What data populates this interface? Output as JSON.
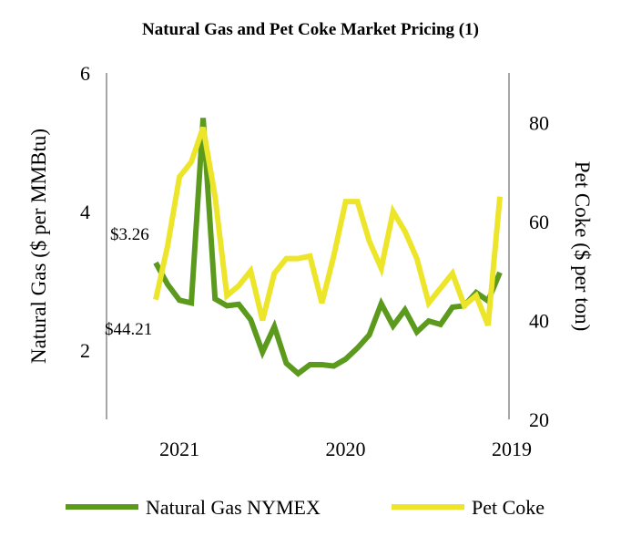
{
  "chart_data": {
    "type": "line",
    "title": "Natural Gas and Pet Coke Market Pricing (1)",
    "ylabel_left": "Natural Gas ($ per MMBtu)",
    "ylabel_right": "Pet Coke ($ per ton)",
    "ylim_left": [
      1,
      6
    ],
    "ylim_right": [
      20,
      90
    ],
    "yticks_left": [
      2,
      4,
      6
    ],
    "yticks_right": [
      20,
      40,
      60,
      80
    ],
    "xtick_labels": [
      "2021",
      "2020",
      "2019"
    ],
    "xtick_positions": [
      2,
      16,
      30
    ],
    "grid": false,
    "legend_position": "bottom",
    "annotations": [
      {
        "text": "$3.26",
        "series": "Natural Gas NYMEX"
      },
      {
        "text": "$44.21",
        "series": "Pet Coke"
      }
    ],
    "series": [
      {
        "name": "Natural Gas NYMEX",
        "axis": "left",
        "color": "#5c9a1e",
        "values": [
          3.26,
          2.95,
          2.72,
          2.68,
          5.35,
          2.74,
          2.64,
          2.66,
          2.44,
          1.97,
          2.34,
          1.81,
          1.66,
          1.79,
          1.79,
          1.77,
          1.87,
          2.03,
          2.22,
          2.67,
          2.35,
          2.58,
          2.26,
          2.42,
          2.37,
          2.62,
          2.64,
          2.83,
          2.71,
          3.12
        ]
      },
      {
        "name": "Pet Coke",
        "axis": "right",
        "color": "#ede52a",
        "values": [
          44.21,
          55,
          69,
          72,
          79,
          65,
          45,
          47,
          50,
          40,
          49.5,
          52.5,
          52.5,
          53,
          43.5,
          53,
          64,
          64,
          56,
          50.5,
          62,
          58,
          52.5,
          43.5,
          46.5,
          49.5,
          43,
          45,
          39,
          65
        ]
      }
    ]
  }
}
